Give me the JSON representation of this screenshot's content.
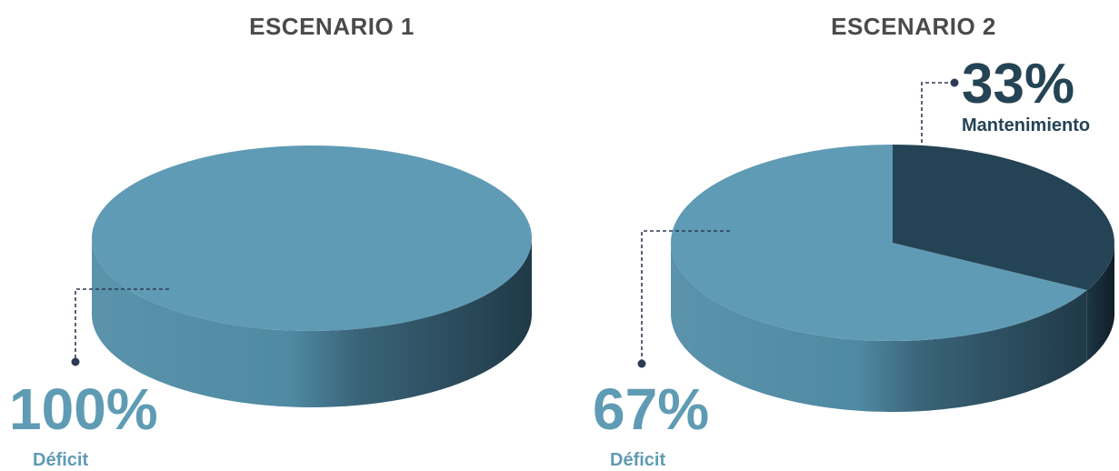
{
  "colors": {
    "deficit": "#5f9bb4",
    "deficit_text": "#5f9bb4",
    "mantenimiento": "#244455",
    "mantenimiento_text": "#244455",
    "title_text": "#4a4a4a",
    "leader": "#2e3a55"
  },
  "chart_data": [
    {
      "type": "pie",
      "title": "ESCENARIO 1",
      "slices": [
        {
          "label": "Déficit",
          "value": 100,
          "value_label": "100%"
        }
      ]
    },
    {
      "type": "pie",
      "title": "ESCENARIO 2",
      "slices": [
        {
          "label": "Déficit",
          "value": 67,
          "value_label": "67%"
        },
        {
          "label": "Mantenimiento",
          "value": 33,
          "value_label": "33%"
        }
      ]
    }
  ]
}
